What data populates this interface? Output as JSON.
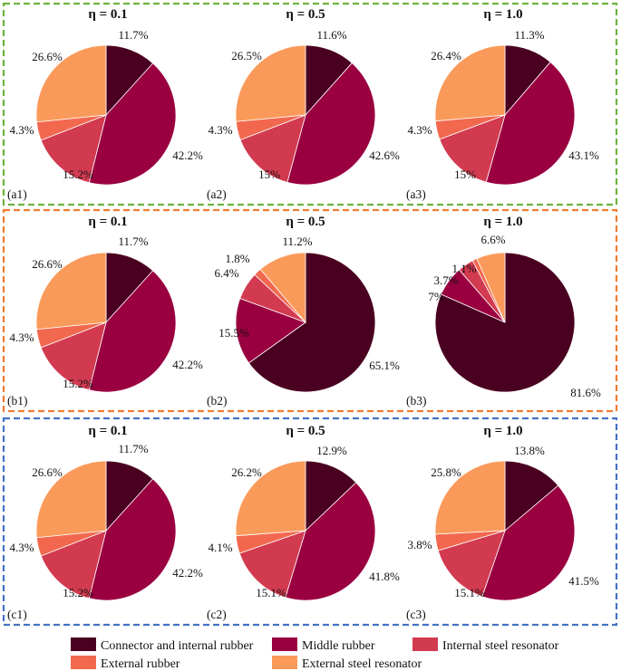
{
  "legend": [
    {
      "name": "Connector and internal rubber",
      "color": "#4a0020"
    },
    {
      "name": "Middle rubber",
      "color": "#9a0040"
    },
    {
      "name": "Internal steel resonator",
      "color": "#d23a50"
    },
    {
      "name": "External rubber",
      "color": "#f2684e"
    },
    {
      "name": "External steel resonator",
      "color": "#fa9a5a"
    }
  ],
  "groups": [
    {
      "border_color": "#6db33f"
    },
    {
      "border_color": "#ed7d31"
    },
    {
      "border_color": "#4472c4"
    }
  ],
  "chart_data": [
    {
      "type": "pie",
      "id": "(a1)",
      "title": "η = 0.1",
      "values": [
        11.7,
        42.2,
        15.2,
        4.3,
        26.6
      ],
      "labels": [
        "11.7%",
        "42.2%",
        "15.2%",
        "4.3%",
        "26.6%"
      ]
    },
    {
      "type": "pie",
      "id": "(a2)",
      "title": "η = 0.5",
      "values": [
        11.6,
        42.6,
        15.0,
        4.3,
        26.5
      ],
      "labels": [
        "11.6%",
        "42.6%",
        "15%",
        "4.3%",
        "26.5%"
      ]
    },
    {
      "type": "pie",
      "id": "(a3)",
      "title": "η = 1.0",
      "values": [
        11.3,
        43.1,
        15.0,
        4.3,
        26.4
      ],
      "labels": [
        "11.3%",
        "43.1%",
        "15%",
        "4.3%",
        "26.4%"
      ]
    },
    {
      "type": "pie",
      "id": "(b1)",
      "title": "η = 0.1",
      "values": [
        11.7,
        42.2,
        15.2,
        4.3,
        26.6
      ],
      "labels": [
        "11.7%",
        "42.2%",
        "15.2%",
        "4.3%",
        "26.6%"
      ]
    },
    {
      "type": "pie",
      "id": "(b2)",
      "title": "η = 0.5",
      "values": [
        65.1,
        15.5,
        6.4,
        1.8,
        11.2
      ],
      "labels": [
        "65.1%",
        "15.5%",
        "6.4%",
        "1.8%",
        "11.2%"
      ]
    },
    {
      "type": "pie",
      "id": "(b3)",
      "title": "η = 1.0",
      "values": [
        81.6,
        7.0,
        3.7,
        1.1,
        6.6
      ],
      "labels": [
        "81.6%",
        "7%",
        "3.7%",
        "1.1%",
        "6.6%"
      ]
    },
    {
      "type": "pie",
      "id": "(c1)",
      "title": "η = 0.1",
      "values": [
        11.7,
        42.2,
        15.2,
        4.3,
        26.6
      ],
      "labels": [
        "11.7%",
        "42.2%",
        "15.2%",
        "4.3%",
        "26.6%"
      ]
    },
    {
      "type": "pie",
      "id": "(c2)",
      "title": "η = 0.5",
      "values": [
        12.9,
        41.8,
        15.1,
        4.1,
        26.2
      ],
      "labels": [
        "12.9%",
        "41.8%",
        "15.1%",
        "4.1%",
        "26.2%"
      ]
    },
    {
      "type": "pie",
      "id": "(c3)",
      "title": "η = 1.0",
      "values": [
        13.8,
        41.5,
        15.1,
        3.8,
        25.8
      ],
      "labels": [
        "13.8%",
        "41.5%",
        "15.1%",
        "3.8%",
        "25.8%"
      ]
    }
  ]
}
